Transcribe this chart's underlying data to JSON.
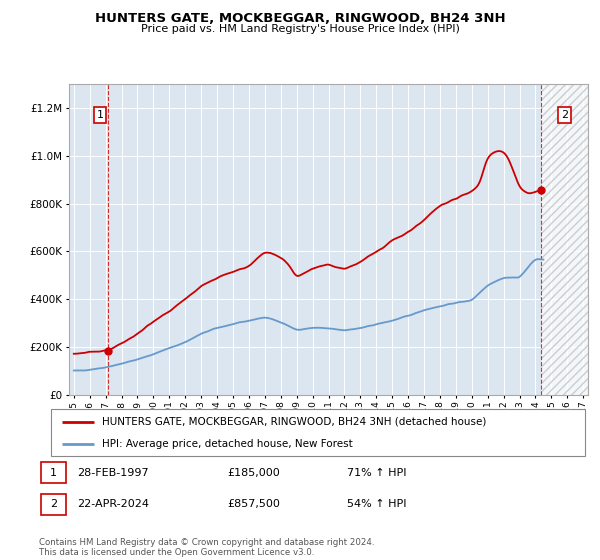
{
  "title": "HUNTERS GATE, MOCKBEGGAR, RINGWOOD, BH24 3NH",
  "subtitle": "Price paid vs. HM Land Registry's House Price Index (HPI)",
  "legend_line1": "HUNTERS GATE, MOCKBEGGAR, RINGWOOD, BH24 3NH (detached house)",
  "legend_line2": "HPI: Average price, detached house, New Forest",
  "annotation1_date": "28-FEB-1997",
  "annotation1_price": "£185,000",
  "annotation1_hpi": "71% ↑ HPI",
  "annotation2_date": "22-APR-2024",
  "annotation2_price": "£857,500",
  "annotation2_hpi": "54% ↑ HPI",
  "footer": "Contains HM Land Registry data © Crown copyright and database right 2024.\nThis data is licensed under the Open Government Licence v3.0.",
  "red_color": "#cc0000",
  "blue_color": "#6699cc",
  "plot_bg": "#dce6f0",
  "ylim": [
    0,
    1300000
  ],
  "yticks": [
    0,
    200000,
    400000,
    600000,
    800000,
    1000000,
    1200000
  ],
  "xlim_start": 1994.7,
  "xlim_end": 2027.3,
  "future_start": 2024.33,
  "marker1_x": 1997.16,
  "marker1_y": 185000,
  "marker2_x": 2024.33,
  "marker2_y": 857500,
  "hpi_years": [
    1995,
    1996,
    1997,
    1998,
    1999,
    2000,
    2001,
    2002,
    2003,
    2004,
    2005,
    2006,
    2007,
    2008,
    2009,
    2010,
    2011,
    2012,
    2013,
    2014,
    2015,
    2016,
    2017,
    2018,
    2019,
    2020,
    2021,
    2022,
    2023,
    2024,
    2024.5
  ],
  "hpi_vals": [
    100000,
    105000,
    115000,
    130000,
    148000,
    170000,
    195000,
    220000,
    255000,
    280000,
    295000,
    310000,
    325000,
    305000,
    270000,
    280000,
    278000,
    270000,
    278000,
    295000,
    310000,
    330000,
    355000,
    370000,
    385000,
    395000,
    460000,
    490000,
    490000,
    570000,
    565000
  ],
  "pp_years": [
    1995,
    1996,
    1997.16,
    1998,
    1999,
    2000,
    2001,
    2002,
    2003,
    2004,
    2005,
    2006,
    2007,
    2008,
    2008.5,
    2009,
    2010,
    2011,
    2012,
    2013,
    2014,
    2015,
    2016,
    2017,
    2018,
    2019,
    2019.5,
    2020,
    2020.5,
    2021,
    2021.5,
    2022,
    2022.3,
    2022.8,
    2023,
    2023.5,
    2024.33
  ],
  "pp_vals": [
    170000,
    178000,
    185000,
    215000,
    255000,
    305000,
    350000,
    400000,
    455000,
    490000,
    515000,
    535000,
    600000,
    575000,
    545000,
    490000,
    530000,
    545000,
    525000,
    555000,
    600000,
    645000,
    680000,
    730000,
    790000,
    820000,
    840000,
    850000,
    880000,
    1000000,
    1020000,
    1020000,
    990000,
    900000,
    870000,
    840000,
    857500
  ]
}
